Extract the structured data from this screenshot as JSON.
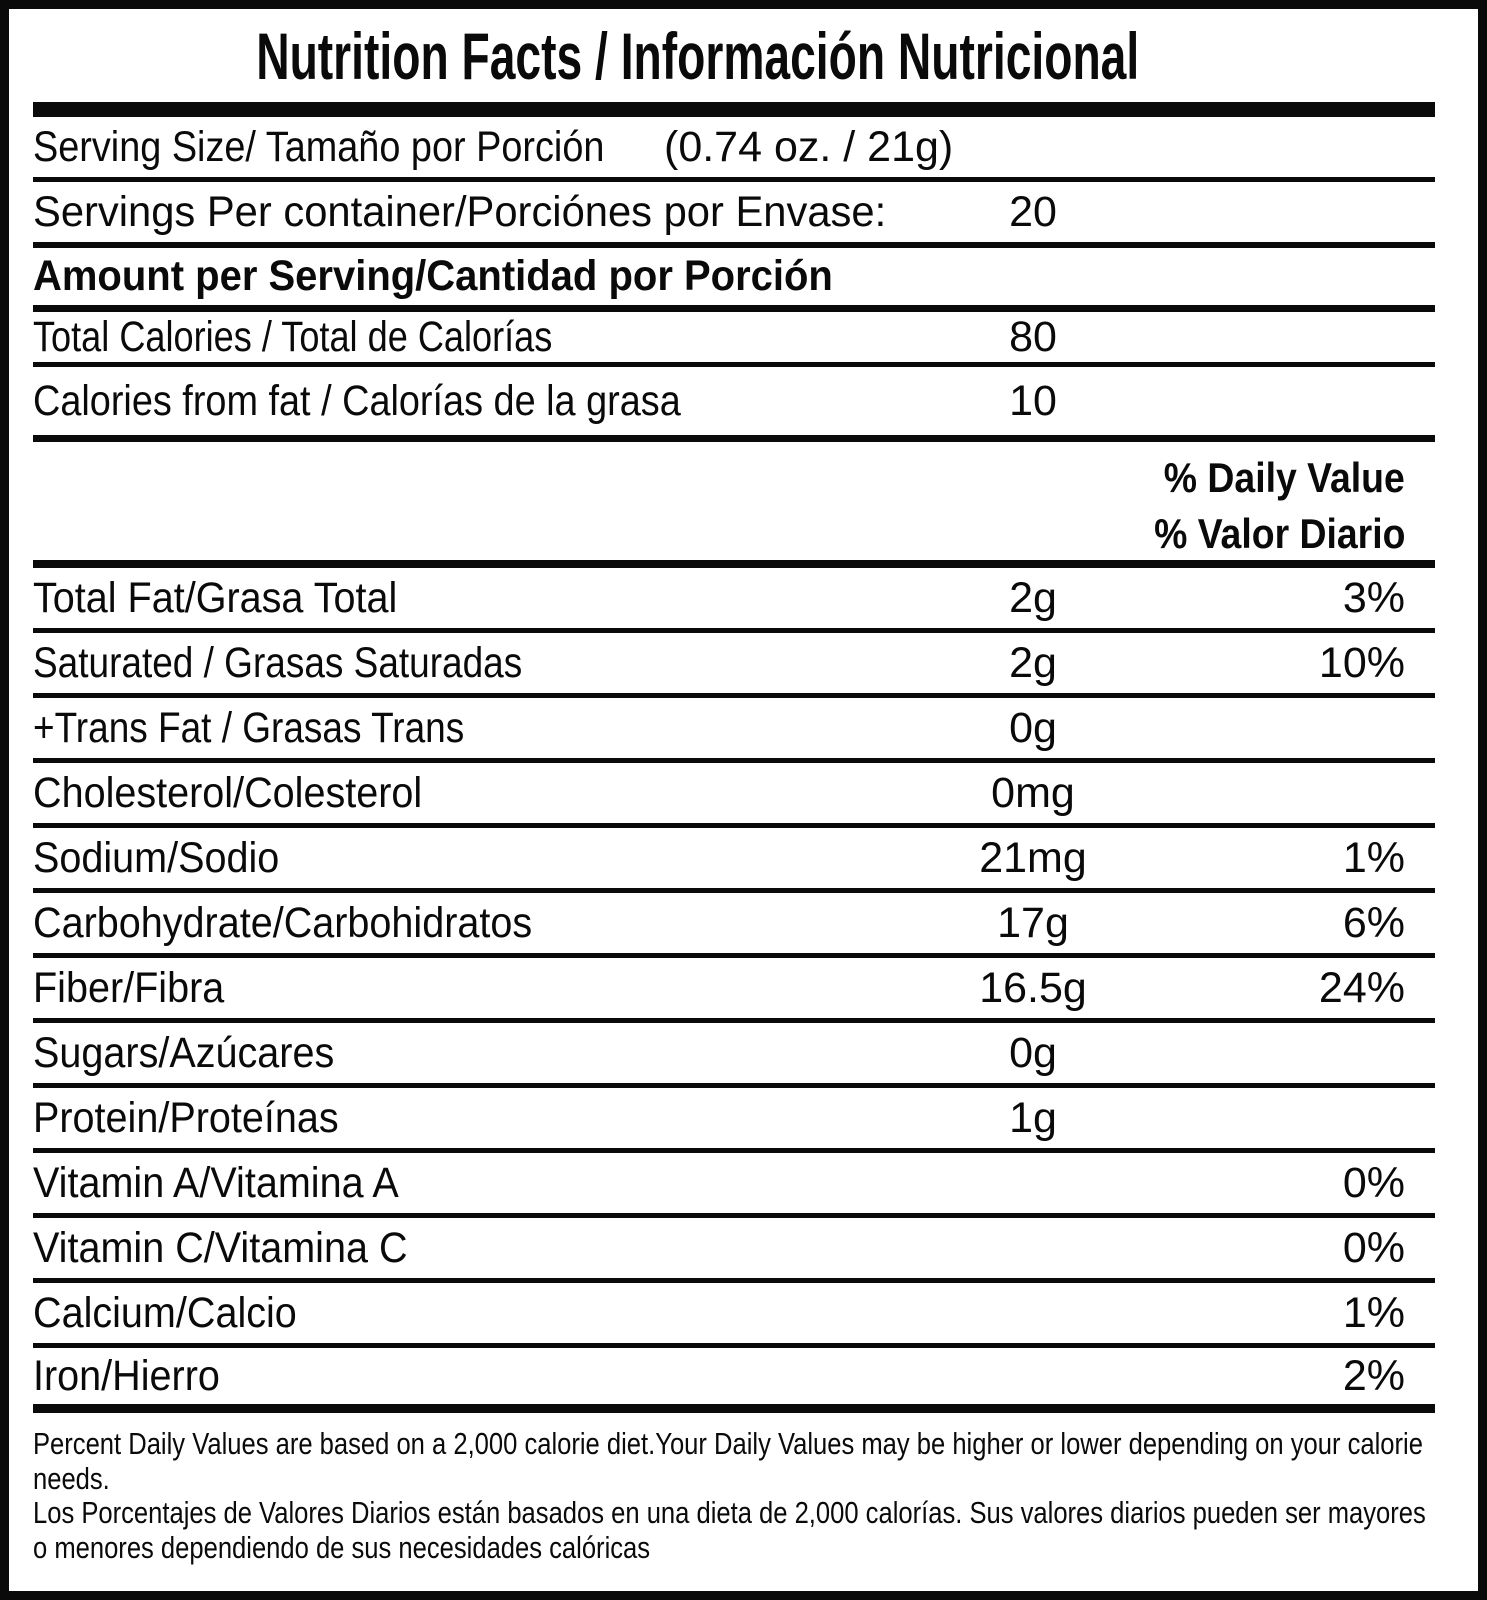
{
  "title": "Nutrition Facts / Información Nutricional",
  "serving": {
    "size_label": "Serving Size/ Tamaño por Porción",
    "size_value": "(0.74 oz. / 21g)",
    "per_container_label": "Servings Per container/Porciónes por Envase:",
    "per_container_value": "20"
  },
  "amount_header": "Amount per Serving/Cantidad por Porción",
  "calories": [
    {
      "label": "Total Calories / Total de Calorías",
      "value": "80"
    },
    {
      "label": "Calories from fat / Calorías de la grasa",
      "value": "10"
    }
  ],
  "daily_value_header": {
    "line1": "% Daily Value",
    "line2": "% Valor Diario"
  },
  "nutrients": [
    {
      "label": "Total Fat/Grasa Total",
      "amount": "2g",
      "dv": "3%"
    },
    {
      "label": "Saturated / Grasas Saturadas",
      "amount": "2g",
      "dv": "10%"
    },
    {
      "label": "+Trans Fat / Grasas Trans",
      "amount": "0g",
      "dv": ""
    },
    {
      "label": "Cholesterol/Colesterol",
      "amount": "0mg",
      "dv": ""
    },
    {
      "label": "Sodium/Sodio",
      "amount": "21mg",
      "dv": "1%"
    },
    {
      "label": "Carbohydrate/Carbohidratos",
      "amount": "17g",
      "dv": "6%"
    },
    {
      "label": "Fiber/Fibra",
      "amount": "16.5g",
      "dv": "24%"
    },
    {
      "label": "Sugars/Azúcares",
      "amount": "0g",
      "dv": ""
    },
    {
      "label": "Protein/Proteínas",
      "amount": "1g",
      "dv": ""
    },
    {
      "label": "Vitamin A/Vitamina A",
      "amount": "",
      "dv": "0%"
    },
    {
      "label": "Vitamin C/Vitamina C",
      "amount": "",
      "dv": "0%"
    },
    {
      "label": "Calcium/Calcio",
      "amount": "",
      "dv": "1%"
    },
    {
      "label": "Iron/Hierro",
      "amount": "",
      "dv": "2%"
    }
  ],
  "footnotes": {
    "english": "Percent Daily Values are based on a 2,000 calorie diet.Your Daily Values may be higher or lower depending on your calorie needs.",
    "spanish": "Los Porcentajes de Valores Diarios están basados en una dieta de 2,000 calorías. Sus valores diarios pueden ser mayores o menores dependiendo de sus necesidades calóricas"
  },
  "colors": {
    "ink": "#0a0a0a",
    "background": "#ffffff"
  }
}
